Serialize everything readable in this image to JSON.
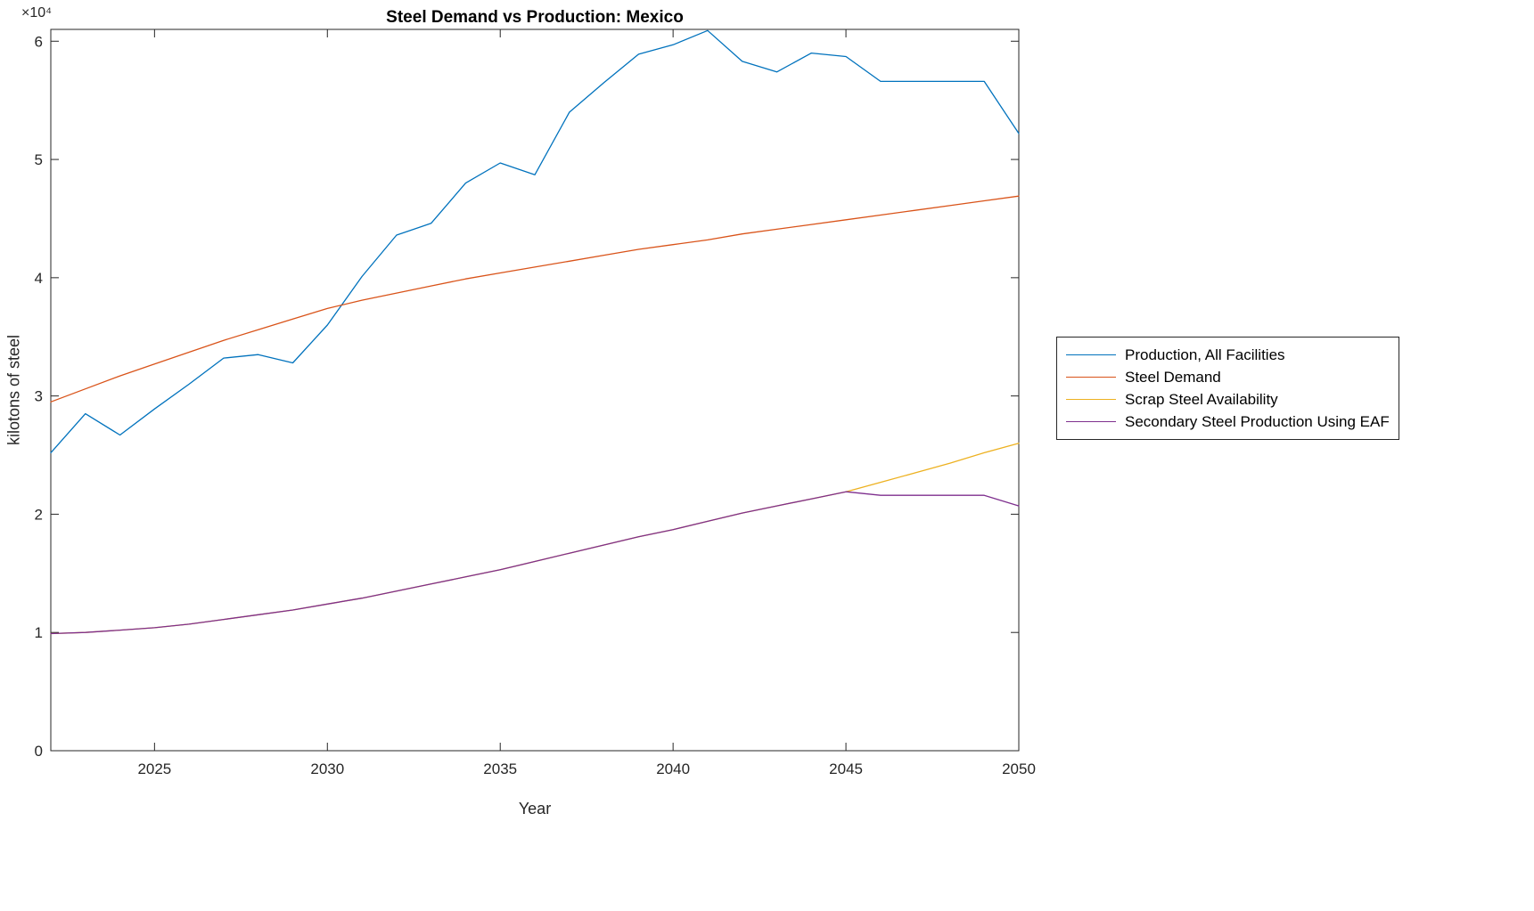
{
  "colors": {
    "axis": "#262626",
    "background": "#ffffff",
    "series_blue": "#0072BD",
    "series_orange": "#D95319",
    "series_yellow": "#EDB120",
    "series_purple": "#7E2F8E"
  },
  "chart_data": {
    "type": "line",
    "title": "Steel Demand vs Production: Mexico",
    "xlabel": "Year",
    "ylabel": "kilotons of steel",
    "y_exponent_label": "×10⁴",
    "grid": false,
    "legend_position": "outside-right",
    "xlim": [
      2022,
      2050
    ],
    "ylim": [
      0,
      61000
    ],
    "x_ticks": [
      2025,
      2030,
      2035,
      2040,
      2045,
      2050
    ],
    "x_tick_labels": [
      "2025",
      "2030",
      "2035",
      "2040",
      "2045",
      "2050"
    ],
    "y_ticks": [
      0,
      10000,
      20000,
      30000,
      40000,
      50000,
      60000
    ],
    "y_tick_labels": [
      "0",
      "1",
      "2",
      "3",
      "4",
      "5",
      "6"
    ],
    "x": [
      2022,
      2023,
      2024,
      2025,
      2026,
      2027,
      2028,
      2029,
      2030,
      2031,
      2032,
      2033,
      2034,
      2035,
      2036,
      2037,
      2038,
      2039,
      2040,
      2041,
      2042,
      2043,
      2044,
      2045,
      2046,
      2047,
      2048,
      2049,
      2050
    ],
    "series": [
      {
        "name": "Production, All Facilities",
        "color": "#0072BD",
        "values": [
          25200,
          28500,
          26700,
          28900,
          31000,
          33200,
          33500,
          32800,
          36000,
          40100,
          43600,
          44600,
          48000,
          49700,
          48700,
          54000,
          56500,
          58900,
          59700,
          60900,
          58300,
          57400,
          59000,
          58700,
          56600,
          56600,
          56600,
          56600,
          52200
        ]
      },
      {
        "name": "Steel Demand",
        "color": "#D95319",
        "values": [
          29500,
          30600,
          31700,
          32700,
          33700,
          34700,
          35600,
          36500,
          37400,
          38100,
          38700,
          39300,
          39900,
          40400,
          40900,
          41400,
          41900,
          42400,
          42800,
          43200,
          43700,
          44100,
          44500,
          44900,
          45300,
          45700,
          46100,
          46500,
          46900
        ]
      },
      {
        "name": "Scrap Steel Availability",
        "color": "#EDB120",
        "values": [
          9900,
          10000,
          10200,
          10400,
          10700,
          11100,
          11500,
          11900,
          12400,
          12900,
          13500,
          14100,
          14700,
          15300,
          16000,
          16700,
          17400,
          18100,
          18700,
          19400,
          20100,
          20700,
          21300,
          21900,
          22700,
          23500,
          24300,
          25200,
          26000
        ]
      },
      {
        "name": "Secondary Steel Production Using EAF",
        "color": "#7E2F8E",
        "values": [
          9900,
          10000,
          10200,
          10400,
          10700,
          11100,
          11500,
          11900,
          12400,
          12900,
          13500,
          14100,
          14700,
          15300,
          16000,
          16700,
          17400,
          18100,
          18700,
          19400,
          20100,
          20700,
          21300,
          21900,
          21600,
          21600,
          21600,
          21600,
          20700
        ]
      }
    ]
  }
}
